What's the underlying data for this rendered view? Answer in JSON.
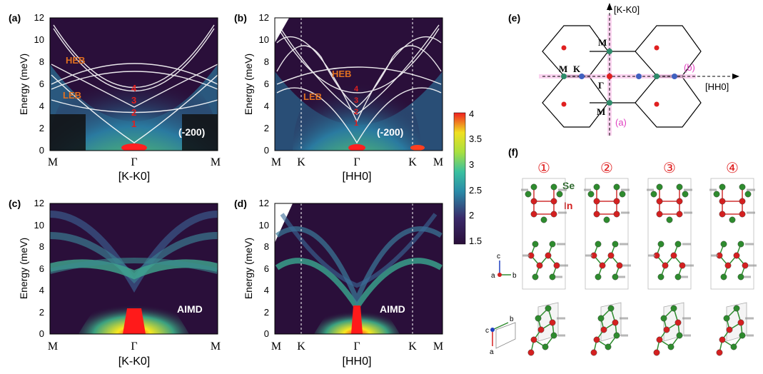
{
  "panels": {
    "a": {
      "label": "(a)",
      "ylabel": "Energy (meV)",
      "xtitle": "[K-K0]",
      "xticks": [
        "M",
        "Γ",
        "M"
      ],
      "tag": "(-200)",
      "heb": "HEB",
      "leb": "LEB"
    },
    "b": {
      "label": "(b)",
      "ylabel": "Energy (meV)",
      "xtitle": "[HH0]",
      "xticks": [
        "M",
        "K",
        "Γ",
        "K",
        "M"
      ],
      "tag": "(-200)",
      "heb": "HEB",
      "leb": "LEB"
    },
    "c": {
      "label": "(c)",
      "ylabel": "Energy (meV)",
      "xtitle": "[K-K0]",
      "xticks": [
        "M",
        "Γ",
        "M"
      ],
      "tag": "AIMD"
    },
    "d": {
      "label": "(d)",
      "ylabel": "Energy (meV)",
      "xtitle": "[HH0]",
      "xticks": [
        "M",
        "K",
        "Γ",
        "K",
        "M"
      ],
      "tag": "AIMD"
    },
    "e": {
      "label": "(e)",
      "axis_v": "[K-K0]",
      "axis_h": "[HH0]",
      "points": [
        "M",
        "K",
        "Γ",
        "M",
        "M"
      ],
      "cut_a": "(a)",
      "cut_b": "(b)"
    },
    "f": {
      "label": "(f)",
      "modes": [
        "①",
        "②",
        "③",
        "④"
      ],
      "se": "Se",
      "in": "In",
      "axes1": [
        "c",
        "a",
        "b"
      ],
      "axes2": [
        "c",
        "b",
        "a"
      ]
    }
  },
  "yticks": [
    "0",
    "2",
    "4",
    "6",
    "8",
    "10",
    "12"
  ],
  "mode_numbers": [
    "4",
    "3",
    "2",
    "1"
  ],
  "colorbar": {
    "ticks": [
      "4",
      "3.5",
      "3",
      "2.5",
      "2",
      "1.5"
    ]
  },
  "colors": {
    "se": "#2e8b2e",
    "in": "#d42020",
    "cut": "#e040c0",
    "bg": "#2a0f3a"
  }
}
